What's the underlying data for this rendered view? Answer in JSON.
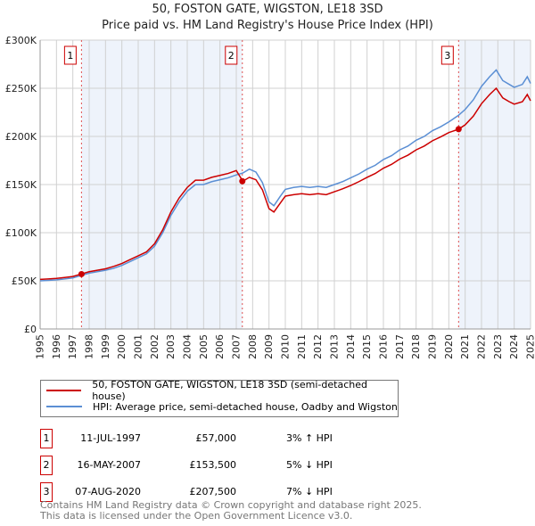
{
  "chart_data": {
    "type": "line",
    "title": "50, FOSTON GATE, WIGSTON, LE18 3SD",
    "subtitle": "Price paid vs. HM Land Registry's House Price Index (HPI)",
    "xlim": [
      1995,
      2025
    ],
    "ylim": [
      0,
      300000
    ],
    "y_ticks": [
      "£0",
      "£50K",
      "£100K",
      "£150K",
      "£200K",
      "£250K",
      "£300K"
    ],
    "y_tick_values": [
      0,
      50000,
      100000,
      150000,
      200000,
      250000,
      300000
    ],
    "x_ticks": [
      "1995",
      "1996",
      "1997",
      "1998",
      "1999",
      "2000",
      "2001",
      "2002",
      "2003",
      "2004",
      "2005",
      "2006",
      "2007",
      "2008",
      "2009",
      "2010",
      "2011",
      "2012",
      "2013",
      "2014",
      "2015",
      "2016",
      "2017",
      "2018",
      "2019",
      "2020",
      "2021",
      "2022",
      "2023",
      "2024",
      "2025"
    ],
    "grid": true,
    "series": [
      {
        "name": "HPI: Average price, semi-detached house, Oadby and Wigston",
        "color": "#5b8fd4",
        "x": [
          1995,
          1995.5,
          1996,
          1996.5,
          1997,
          1997.5,
          1998,
          1998.5,
          1999,
          1999.5,
          2000,
          2000.5,
          2001,
          2001.5,
          2002,
          2002.5,
          2003,
          2003.5,
          2004,
          2004.5,
          2005,
          2005.5,
          2006,
          2006.5,
          2007,
          2007.4,
          2007.8,
          2008.2,
          2008.6,
          2009,
          2009.3,
          2009.7,
          2010,
          2010.5,
          2011,
          2011.5,
          2012,
          2012.5,
          2013,
          2013.5,
          2014,
          2014.5,
          2015,
          2015.5,
          2016,
          2016.5,
          2017,
          2017.5,
          2018,
          2018.5,
          2019,
          2019.5,
          2020,
          2020.6,
          2021,
          2021.5,
          2022,
          2022.5,
          2022.9,
          2023.3,
          2023.7,
          2024,
          2024.5,
          2024.8,
          2025
        ],
        "y": [
          50000,
          50500,
          51000,
          52000,
          53000,
          55500,
          58000,
          59500,
          61000,
          63000,
          66000,
          70000,
          74000,
          78000,
          86000,
          100000,
          118000,
          132000,
          143000,
          150000,
          150000,
          153000,
          155000,
          157000,
          160000,
          162000,
          166000,
          163000,
          152000,
          132000,
          128000,
          138000,
          145000,
          147000,
          148000,
          147000,
          148000,
          147000,
          150000,
          153000,
          157000,
          161000,
          166000,
          170000,
          176000,
          180000,
          186000,
          190000,
          196000,
          200000,
          206000,
          210000,
          215000,
          222000,
          228000,
          238000,
          252000,
          262000,
          269000,
          258000,
          254000,
          251000,
          254000,
          262000,
          255000
        ]
      },
      {
        "name": "50, FOSTON GATE, WIGSTON, LE18 3SD (semi-detached house)",
        "color": "#cc0000",
        "x": [
          1995,
          1995.5,
          1996,
          1996.5,
          1997,
          1997.5,
          1998,
          1998.5,
          1999,
          1999.5,
          2000,
          2000.5,
          2001,
          2001.5,
          2002,
          2002.5,
          2003,
          2003.5,
          2004,
          2004.5,
          2005,
          2005.5,
          2006,
          2006.5,
          2007,
          2007.4,
          2007.8,
          2008.2,
          2008.6,
          2009,
          2009.3,
          2009.7,
          2010,
          2010.5,
          2011,
          2011.5,
          2012,
          2012.5,
          2013,
          2013.5,
          2014,
          2014.5,
          2015,
          2015.5,
          2016,
          2016.5,
          2017,
          2017.5,
          2018,
          2018.5,
          2019,
          2019.5,
          2020,
          2020.6,
          2021,
          2021.5,
          2022,
          2022.5,
          2022.9,
          2023.3,
          2023.7,
          2024,
          2024.5,
          2024.8,
          2025
        ],
        "y": [
          51500,
          52000,
          52500,
          53500,
          54500,
          57000,
          59500,
          61000,
          62500,
          65000,
          68000,
          72000,
          76000,
          80000,
          88500,
          103000,
          121500,
          136000,
          147000,
          154500,
          154500,
          157500,
          159500,
          161500,
          164500,
          153500,
          157500,
          155000,
          144500,
          125000,
          121500,
          131000,
          138000,
          139500,
          140500,
          139500,
          140500,
          139500,
          142500,
          145500,
          149000,
          153000,
          157500,
          161500,
          167000,
          171000,
          176500,
          180500,
          186000,
          190000,
          195500,
          199500,
          204000,
          207500,
          212000,
          221000,
          234000,
          243500,
          250000,
          240000,
          236000,
          233500,
          236000,
          243500,
          237000
        ]
      }
    ],
    "transactions": [
      {
        "label": "1",
        "date": "11-JUL-1997",
        "x": 1997.53,
        "price": "£57,000",
        "value": 57000,
        "hpi": "3% ↑ HPI"
      },
      {
        "label": "2",
        "date": "16-MAY-2007",
        "x": 2007.37,
        "price": "£153,500",
        "value": 153500,
        "hpi": "5% ↓ HPI"
      },
      {
        "label": "3",
        "date": "07-AUG-2020",
        "x": 2020.6,
        "price": "£207,500",
        "value": 207500,
        "hpi": "7% ↓ HPI"
      }
    ]
  },
  "footer": {
    "line1": "Contains HM Land Registry data © Crown copyright and database right 2025.",
    "line2": "This data is licensed under the Open Government Licence v3.0."
  }
}
